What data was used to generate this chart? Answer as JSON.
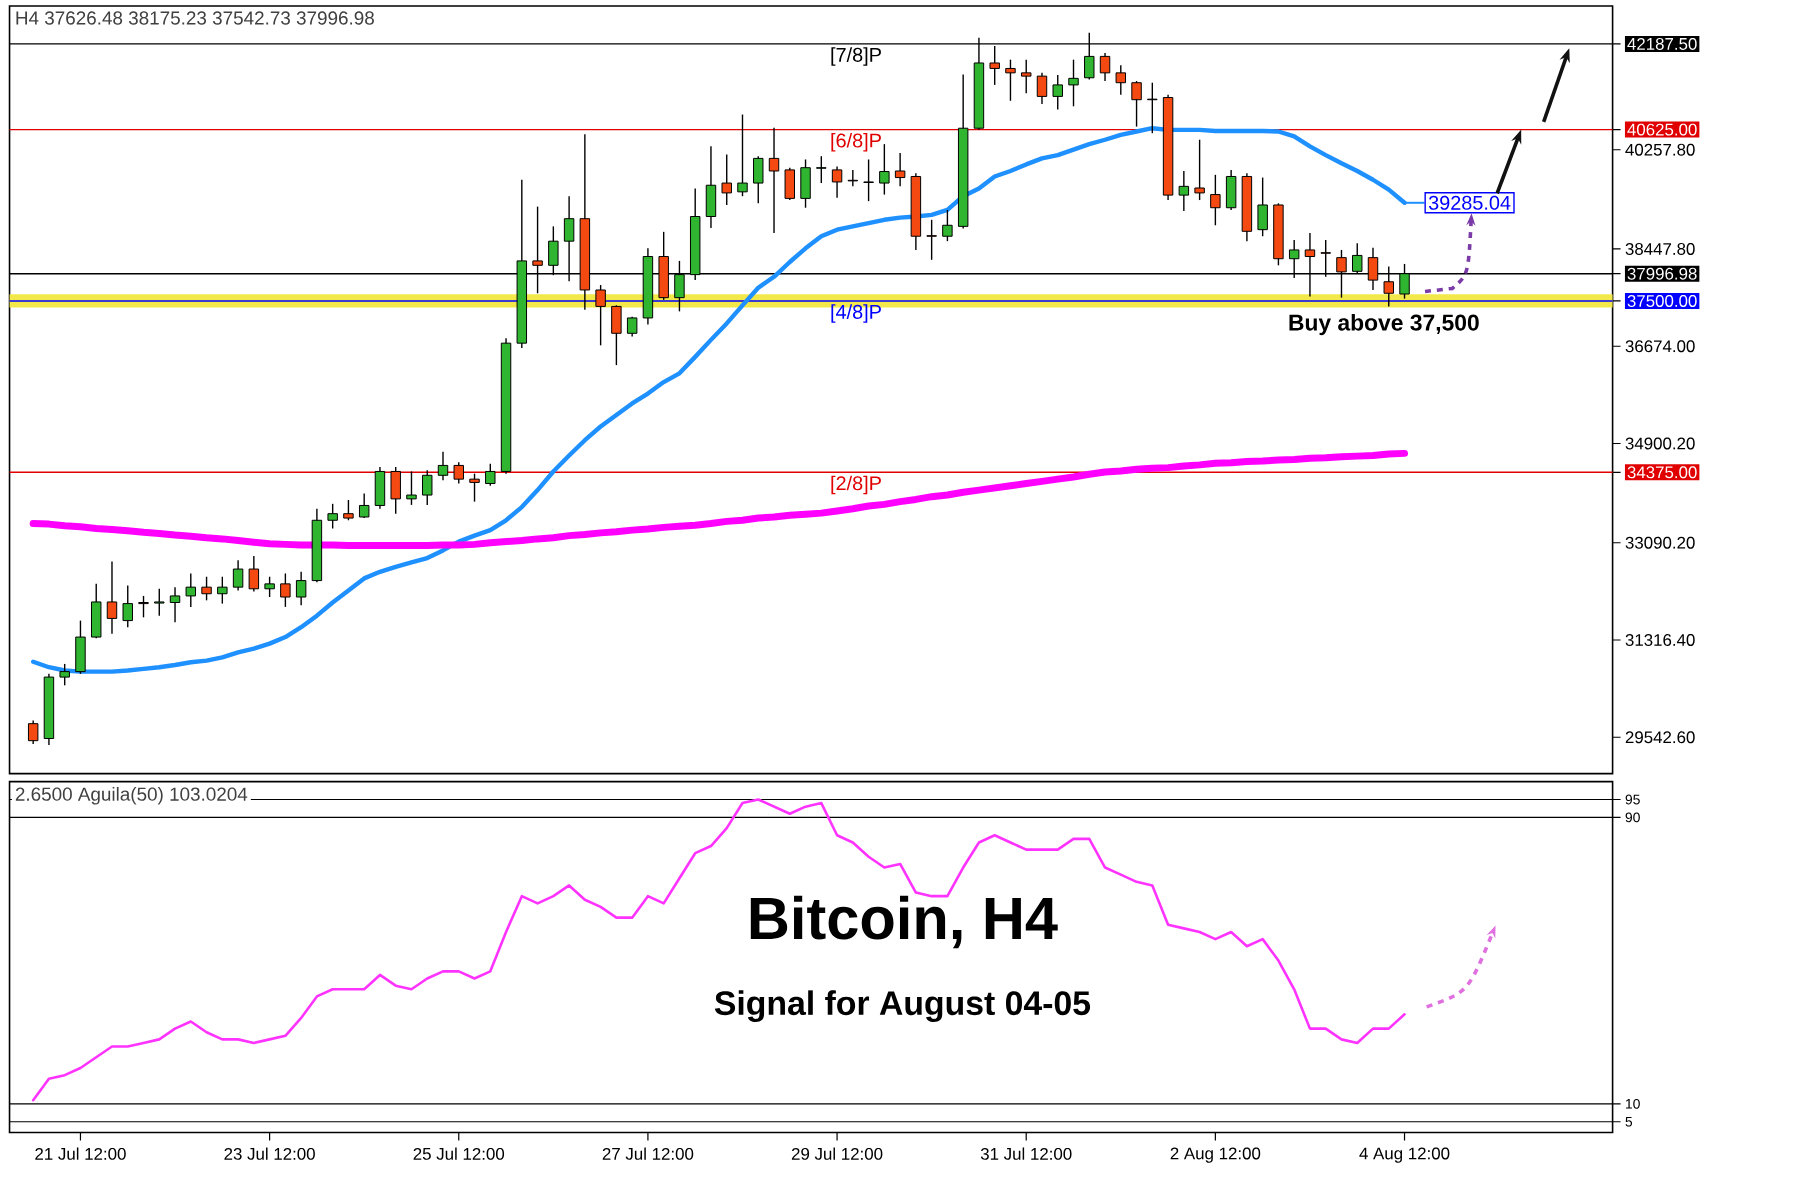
{
  "chart_data": [
    {
      "type": "candlestick",
      "annotations": [
        "H4 37626.48 38175.23 37542.73 37996.98",
        "Buy above 37,500",
        "39285.04"
      ],
      "categories": [
        null,
        null,
        null,
        null,
        null,
        null,
        null,
        null,
        null,
        null,
        null,
        null,
        null,
        null,
        null,
        null,
        null,
        null,
        null,
        null,
        null,
        null,
        null,
        null,
        null,
        null,
        null,
        null,
        null,
        null,
        null,
        null,
        null,
        null,
        null,
        null,
        null,
        null,
        null,
        null,
        null,
        null,
        null,
        null,
        null,
        null,
        null,
        null,
        null,
        null,
        null,
        null,
        null,
        null,
        null,
        null,
        null,
        null,
        null,
        null,
        null,
        null,
        null,
        null,
        null,
        null,
        null,
        null,
        null,
        null,
        null,
        null,
        null,
        null,
        null,
        null,
        null,
        null,
        null,
        null,
        null,
        null,
        null,
        null,
        null,
        null,
        null,
        null
      ],
      "ohlc": [
        [
          29790,
          29850,
          29420,
          29480
        ],
        [
          29520,
          30700,
          29400,
          30640
        ],
        [
          30640,
          30880,
          30490,
          30740
        ],
        [
          30740,
          31670,
          30700,
          31370
        ],
        [
          31370,
          32340,
          31350,
          32010
        ],
        [
          32010,
          32750,
          31430,
          31710
        ],
        [
          31670,
          32310,
          31550,
          31980
        ],
        [
          32000,
          32120,
          31730,
          31980
        ],
        [
          31990,
          32250,
          31760,
          32010
        ],
        [
          32000,
          32280,
          31640,
          32120
        ],
        [
          32120,
          32530,
          31920,
          32280
        ],
        [
          32280,
          32470,
          32040,
          32160
        ],
        [
          32160,
          32470,
          31980,
          32280
        ],
        [
          32280,
          32770,
          32220,
          32610
        ],
        [
          32610,
          32850,
          32200,
          32250
        ],
        [
          32250,
          32470,
          32100,
          32340
        ],
        [
          32340,
          32530,
          31920,
          32100
        ],
        [
          32100,
          32560,
          31950,
          32400
        ],
        [
          32400,
          33710,
          32370,
          33500
        ],
        [
          33500,
          33800,
          33350,
          33620
        ],
        [
          33620,
          33870,
          33500,
          33540
        ],
        [
          33560,
          33990,
          33540,
          33770
        ],
        [
          33770,
          34470,
          33710,
          34390
        ],
        [
          34390,
          34470,
          33620,
          33890
        ],
        [
          33890,
          34390,
          33780,
          33960
        ],
        [
          33960,
          34410,
          33780,
          34320
        ],
        [
          34320,
          34750,
          34230,
          34500
        ],
        [
          34500,
          34560,
          34170,
          34250
        ],
        [
          34250,
          34350,
          33840,
          34190
        ],
        [
          34170,
          34530,
          34130,
          34390
        ],
        [
          34390,
          36820,
          34350,
          36730
        ],
        [
          36730,
          39710,
          36640,
          38230
        ],
        [
          38230,
          39220,
          37640,
          38150
        ],
        [
          38150,
          38860,
          37970,
          38590
        ],
        [
          38590,
          39410,
          37860,
          39000
        ],
        [
          39000,
          40540,
          37340,
          37700
        ],
        [
          37700,
          37790,
          36690,
          37400
        ],
        [
          37400,
          37420,
          36330,
          36910
        ],
        [
          36910,
          37210,
          36850,
          37190
        ],
        [
          37190,
          38460,
          37070,
          38310
        ],
        [
          38310,
          38760,
          37520,
          37560
        ],
        [
          37560,
          38230,
          37310,
          37980
        ],
        [
          37980,
          39550,
          37880,
          39040
        ],
        [
          39040,
          40320,
          38830,
          39610
        ],
        [
          39650,
          40170,
          39250,
          39470
        ],
        [
          39490,
          40900,
          39410,
          39650
        ],
        [
          39650,
          40140,
          39280,
          40100
        ],
        [
          40100,
          40660,
          38740,
          39870
        ],
        [
          39890,
          39930,
          39340,
          39370
        ],
        [
          39370,
          40080,
          39200,
          39930
        ],
        [
          39920,
          40140,
          39650,
          39930
        ],
        [
          39890,
          39950,
          39380,
          39670
        ],
        [
          39700,
          39890,
          39590,
          39690
        ],
        [
          39660,
          40080,
          39320,
          39670
        ],
        [
          39650,
          40360,
          39440,
          39860
        ],
        [
          39870,
          40200,
          39590,
          39750
        ],
        [
          39770,
          39830,
          38430,
          38680
        ],
        [
          38690,
          38980,
          38250,
          38680
        ],
        [
          38680,
          39160,
          38590,
          38880
        ],
        [
          38860,
          41630,
          38820,
          40650
        ],
        [
          40650,
          42300,
          40620,
          41840
        ],
        [
          41840,
          42150,
          41440,
          41740
        ],
        [
          41740,
          41900,
          41150,
          41660
        ],
        [
          41660,
          41900,
          41290,
          41600
        ],
        [
          41600,
          41660,
          41090,
          41230
        ],
        [
          41230,
          41620,
          40990,
          41440
        ],
        [
          41440,
          41900,
          41050,
          41560
        ],
        [
          41570,
          42390,
          41540,
          41960
        ],
        [
          41960,
          42020,
          41510,
          41660
        ],
        [
          41660,
          41800,
          41260,
          41480
        ],
        [
          41480,
          41510,
          40680,
          41170
        ],
        [
          41180,
          41480,
          40560,
          41170
        ],
        [
          41210,
          41260,
          39340,
          39430
        ],
        [
          39430,
          39870,
          39140,
          39590
        ],
        [
          39560,
          40440,
          39340,
          39470
        ],
        [
          39440,
          39800,
          38880,
          39200
        ],
        [
          39200,
          39890,
          39160,
          39770
        ],
        [
          39770,
          39830,
          38590,
          38770
        ],
        [
          38800,
          39750,
          38680,
          39250
        ],
        [
          39250,
          39280,
          38150,
          38270
        ],
        [
          38270,
          38610,
          37920,
          38430
        ],
        [
          38430,
          38740,
          37580,
          38310
        ],
        [
          38380,
          38610,
          37940,
          38370
        ],
        [
          38290,
          38430,
          37560,
          38030
        ],
        [
          38040,
          38550,
          38010,
          38330
        ],
        [
          38290,
          38470,
          37700,
          37880
        ],
        [
          37850,
          38130,
          37400,
          37640
        ],
        [
          37626.48,
          38175.23,
          37542.73,
          37996.98
        ]
      ],
      "series": [
        {
          "type": "line",
          "color": "#1e90ff",
          "values": [
            30920,
            30820,
            30760,
            30740,
            30740,
            30740,
            30760,
            30790,
            30820,
            30860,
            30910,
            30940,
            31000,
            31090,
            31160,
            31250,
            31370,
            31550,
            31760,
            32000,
            32220,
            32440,
            32560,
            32650,
            32730,
            32810,
            32950,
            33110,
            33220,
            33320,
            33500,
            33740,
            34050,
            34390,
            34680,
            34960,
            35210,
            35420,
            35630,
            35810,
            36020,
            36180,
            36480,
            36790,
            37090,
            37420,
            37740,
            37940,
            38210,
            38460,
            38680,
            38800,
            38860,
            38920,
            38980,
            39020,
            39040,
            39070,
            39160,
            39410,
            39550,
            39770,
            39870,
            39990,
            40100,
            40160,
            40260,
            40360,
            40440,
            40530,
            40590,
            40650,
            40620,
            40620,
            40620,
            40600,
            40600,
            40600,
            40600,
            40590,
            40500,
            40320,
            40160,
            40010,
            39870,
            39710,
            39530,
            39290
          ]
        },
        {
          "type": "line",
          "color": "#ff00ff",
          "values": [
            33440,
            33430,
            33400,
            33380,
            33350,
            33330,
            33310,
            33280,
            33260,
            33230,
            33210,
            33180,
            33160,
            33130,
            33100,
            33070,
            33060,
            33050,
            33050,
            33050,
            33040,
            33040,
            33040,
            33040,
            33040,
            33040,
            33050,
            33050,
            33060,
            33090,
            33110,
            33130,
            33160,
            33180,
            33220,
            33240,
            33270,
            33290,
            33320,
            33340,
            33370,
            33390,
            33410,
            33440,
            33480,
            33500,
            33540,
            33560,
            33590,
            33610,
            33630,
            33670,
            33710,
            33760,
            33790,
            33840,
            33880,
            33930,
            33960,
            34010,
            34050,
            34090,
            34130,
            34170,
            34210,
            34250,
            34290,
            34340,
            34380,
            34400,
            34430,
            34450,
            34460,
            34490,
            34510,
            34540,
            34550,
            34570,
            34580,
            34600,
            34610,
            34630,
            34640,
            34660,
            34670,
            34680,
            34710,
            34720
          ]
        }
      ],
      "ylim": [
        28880,
        42880
      ],
      "yticks": [
        {
          "value": 29542.6,
          "label": "29542.60"
        },
        {
          "value": 31316.4,
          "label": "31316.40"
        },
        {
          "value": 33090.2,
          "label": "33090.20"
        },
        {
          "value": 34375,
          "label": "34375.00"
        },
        {
          "value": 34900.2,
          "label": "34900.20"
        },
        {
          "value": 36674,
          "label": "36674.00"
        },
        {
          "value": 37500,
          "label": "37500.00"
        },
        {
          "value": 37996.98,
          "label": "37996.98"
        },
        {
          "value": 38447.8,
          "label": "38447.80"
        },
        {
          "value": 40257.8,
          "label": "40257.80"
        },
        {
          "value": 40625,
          "label": "40625.00"
        },
        {
          "value": 42187.5,
          "label": "42187.50"
        }
      ],
      "ref_lines": [
        {
          "axis": "y",
          "value": 42187.5,
          "label": "[7/8]P",
          "color": "#000000"
        },
        {
          "axis": "y",
          "value": 40625,
          "label": "[6/8]P",
          "color": "#e00000"
        },
        {
          "axis": "y",
          "value": 37996.98,
          "color": "#000000"
        },
        {
          "axis": "y",
          "value": 37500,
          "label": "[4/8]P",
          "color": "#0000ff"
        },
        {
          "axis": "y",
          "value": 34375,
          "label": "[2/8]P",
          "color": "#e00000"
        }
      ],
      "bands": [
        {
          "axis": "y",
          "from": 37380,
          "to": 37620,
          "color": "#f3e84a"
        }
      ],
      "tick_labels": "y"
    },
    {
      "type": "line",
      "title": "Bitcoin, H4",
      "subtitle": "Signal for August 04-05",
      "annotations": [
        "2.6500 Aguila(50) 103.0204"
      ],
      "categories": [
        null,
        null,
        null,
        "21 Jul 12:00",
        null,
        null,
        null,
        null,
        null,
        null,
        null,
        null,
        null,
        null,
        null,
        "23 Jul 12:00",
        null,
        null,
        null,
        null,
        null,
        null,
        null,
        null,
        null,
        null,
        null,
        "25 Jul 12:00",
        null,
        null,
        null,
        null,
        null,
        null,
        null,
        null,
        null,
        null,
        null,
        "27 Jul 12:00",
        null,
        null,
        null,
        null,
        null,
        null,
        null,
        null,
        null,
        null,
        null,
        "29 Jul 12:00",
        null,
        null,
        null,
        null,
        null,
        null,
        null,
        null,
        null,
        null,
        null,
        "31 Jul 12:00",
        null,
        null,
        null,
        null,
        null,
        null,
        null,
        null,
        null,
        null,
        null,
        "2 Aug 12:00",
        null,
        null,
        null,
        null,
        null,
        null,
        null,
        null,
        null,
        null,
        null,
        "4 Aug 12:00"
      ],
      "series": [
        {
          "color": "#ff33ff",
          "values": [
            11,
            17,
            18,
            20,
            23,
            26,
            26,
            27,
            28,
            31,
            33,
            30,
            28,
            28,
            27,
            28,
            29,
            34,
            40,
            42,
            42,
            42,
            46,
            43,
            42,
            45,
            47,
            47,
            45,
            47,
            58,
            68,
            66,
            68,
            71,
            67,
            65,
            62,
            62,
            68,
            66,
            73,
            80,
            82,
            87,
            94,
            95,
            93,
            91,
            93,
            94,
            85,
            83,
            79,
            76,
            77,
            69,
            68,
            68,
            76,
            83,
            85,
            83,
            81,
            81,
            81,
            84,
            84,
            76,
            74,
            72,
            71,
            60,
            59,
            58,
            56,
            58,
            54,
            56,
            50,
            42,
            31,
            31,
            28,
            27,
            31,
            31,
            35
          ]
        }
      ],
      "ylim": [
        2,
        100
      ],
      "yticks": [
        5,
        10,
        90,
        95
      ],
      "grid": "y"
    }
  ]
}
